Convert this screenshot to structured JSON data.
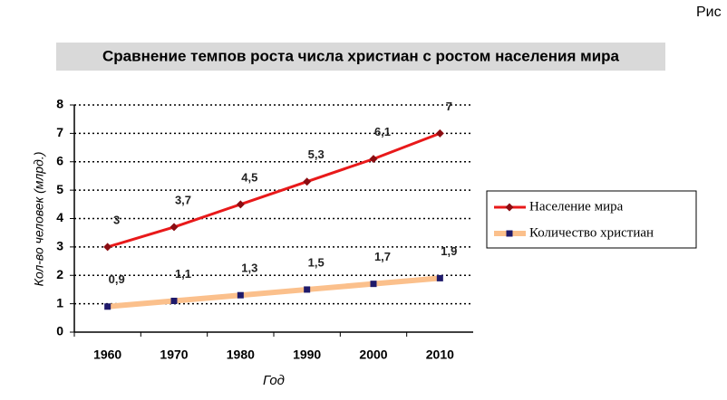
{
  "figure_label": "Рис",
  "chart_data": {
    "type": "line",
    "title": "Сравнение темпов роста числа христиан с ростом населения мира",
    "x_label": "Год",
    "y_label": "Кол-во человек (млрд.)",
    "categories": [
      "1960",
      "1970",
      "1980",
      "1990",
      "2000",
      "2010"
    ],
    "ylim": [
      0,
      8
    ],
    "yticks": [
      0,
      1,
      2,
      3,
      4,
      5,
      6,
      7,
      8
    ],
    "grid": true,
    "legend": "right",
    "series": [
      {
        "name": "Население мира",
        "color": "#e8191a",
        "marker_color": "#8b0d12",
        "marker": "diamond",
        "values": [
          3,
          3.7,
          4.5,
          5.3,
          6.1,
          7
        ],
        "value_labels": [
          "3",
          "3,7",
          "4,5",
          "5,3",
          "6,1",
          "7"
        ]
      },
      {
        "name": "Количество христиан",
        "color": "#fbc08c",
        "marker_color": "#1f1a6b",
        "marker": "square",
        "values": [
          0.9,
          1.1,
          1.3,
          1.5,
          1.7,
          1.9
        ],
        "value_labels": [
          "0,9",
          "1,1",
          "1,3",
          "1,5",
          "1,7",
          "1,9"
        ]
      }
    ]
  }
}
